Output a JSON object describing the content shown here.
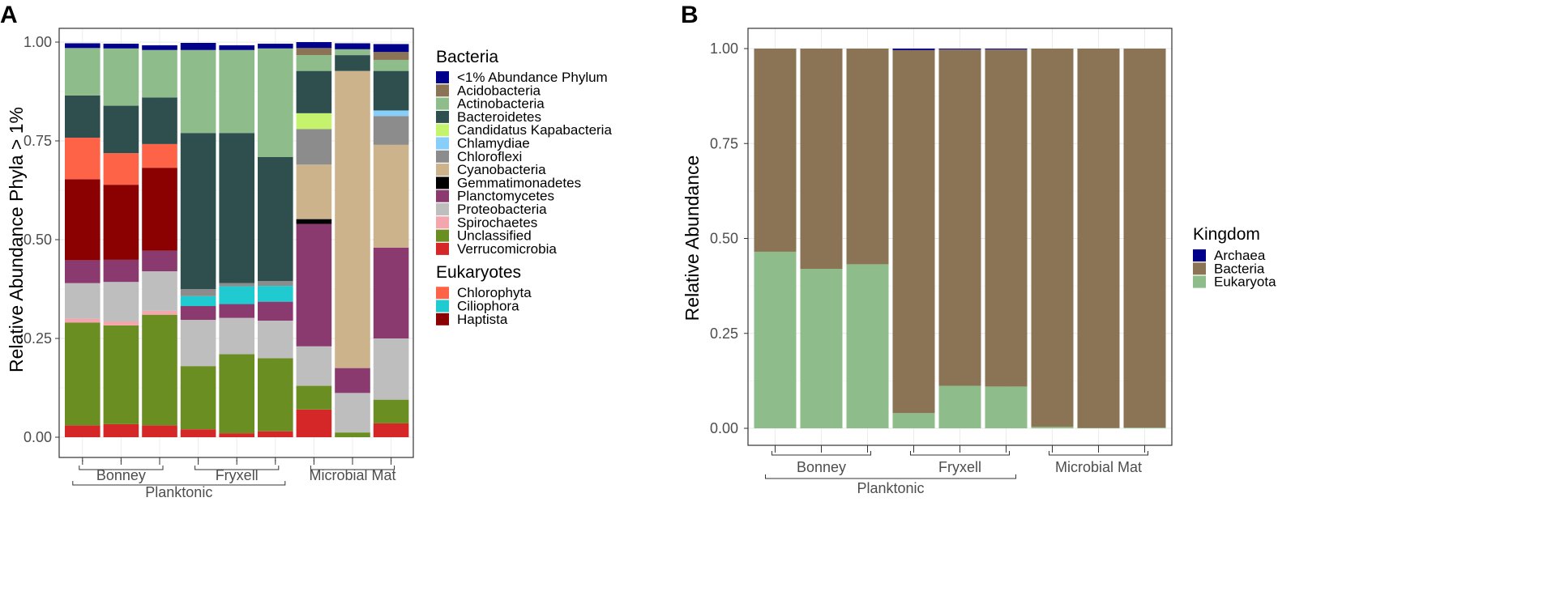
{
  "figure": {
    "panels": [
      "A",
      "B"
    ]
  },
  "chart_data": [
    {
      "panel": "A",
      "type": "bar",
      "stacked": true,
      "title": "",
      "xlabel": "",
      "ylabel": "Relative Abundance Phyla > 1%",
      "ylim": [
        0,
        1
      ],
      "yticks": [
        "0.00",
        "0.25",
        "0.50",
        "0.75",
        "1.00"
      ],
      "grid": true,
      "legend_position": "right",
      "samples": 9,
      "groups": {
        "sites": [
          {
            "label": "Bonney",
            "from": 0,
            "to": 2
          },
          {
            "label": "Fryxell",
            "from": 3,
            "to": 5
          },
          {
            "label": "Microbial Mat",
            "from": 6,
            "to": 8
          }
        ],
        "types": [
          {
            "label": "Planktonic",
            "from": 0,
            "to": 5
          }
        ]
      },
      "legend_groups": [
        {
          "title": "Bacteria",
          "members": [
            "<1% Abundance Phylum",
            "Acidobacteria",
            "Actinobacteria",
            "Bacteroidetes",
            "Candidatus Kapabacteria",
            "Chlamydiae",
            "Chloroflexi",
            "Cyanobacteria",
            "Gemmatimonadetes",
            "Planctomycetes",
            "Proteobacteria",
            "Spirochaetes",
            "Unclassified",
            "Verrucomicrobia"
          ]
        },
        {
          "title": "Eukaryotes",
          "members": [
            "Chlorophyta",
            "Ciliophora",
            "Haptista"
          ]
        }
      ],
      "series": [
        {
          "name": "Verrucomicrobia",
          "color": "#d62728",
          "values": [
            0.03,
            0.033,
            0.03,
            0.02,
            0.01,
            0.015,
            0.07,
            0.0,
            0.035
          ]
        },
        {
          "name": "Unclassified",
          "color": "#6b8e23",
          "values": [
            0.26,
            0.25,
            0.28,
            0.16,
            0.2,
            0.185,
            0.06,
            0.012,
            0.06
          ]
        },
        {
          "name": "Spirochaetes",
          "color": "#f4a6ae",
          "values": [
            0.01,
            0.01,
            0.01,
            0.0,
            0.0,
            0.0,
            0.0,
            0.0,
            0.0
          ]
        },
        {
          "name": "Proteobacteria",
          "color": "#bebebe",
          "values": [
            0.09,
            0.1,
            0.1,
            0.117,
            0.092,
            0.095,
            0.1,
            0.1,
            0.155
          ]
        },
        {
          "name": "Planctomycetes",
          "color": "#8b3a70",
          "values": [
            0.058,
            0.056,
            0.052,
            0.035,
            0.035,
            0.048,
            0.31,
            0.063,
            0.23
          ]
        },
        {
          "name": "Ciliophora",
          "color": "#1fcad0",
          "values": [
            0.0,
            0.0,
            0.0,
            0.025,
            0.045,
            0.04,
            0.0,
            0.0,
            0.0
          ]
        },
        {
          "name": "Haptista",
          "color": "#8b0000",
          "values": [
            0.205,
            0.19,
            0.21,
            0.0,
            0.0,
            0.0,
            0.0,
            0.0,
            0.0
          ]
        },
        {
          "name": "Gemmatimonadetes",
          "color": "#000000",
          "values": [
            0.0,
            0.0,
            0.0,
            0.0,
            0.0,
            0.0,
            0.012,
            0.0,
            0.0
          ]
        },
        {
          "name": "Cyanobacteria",
          "color": "#cdb38b",
          "values": [
            0.0,
            0.0,
            0.0,
            0.0,
            0.0,
            0.0,
            0.138,
            0.752,
            0.26
          ]
        },
        {
          "name": "Chloroflexi",
          "color": "#8c8c8c",
          "values": [
            0.0,
            0.0,
            0.0,
            0.018,
            0.008,
            0.012,
            0.09,
            0.0,
            0.073
          ]
        },
        {
          "name": "Chlorophyta",
          "color": "#ff6347",
          "values": [
            0.105,
            0.08,
            0.06,
            0.0,
            0.0,
            0.0,
            0.0,
            0.0,
            0.0
          ]
        },
        {
          "name": "Candidatus Kapabacteria",
          "color": "#c6f36e",
          "values": [
            0.0,
            0.0,
            0.0,
            0.0,
            0.0,
            0.0,
            0.04,
            0.0,
            0.0
          ]
        },
        {
          "name": "Chlamydiae",
          "color": "#87cefa",
          "values": [
            0.0,
            0.0,
            0.0,
            0.0,
            0.0,
            0.0,
            0.0,
            0.0,
            0.014
          ]
        },
        {
          "name": "Bacteroidetes",
          "color": "#2f4f4f",
          "values": [
            0.107,
            0.12,
            0.118,
            0.395,
            0.38,
            0.314,
            0.107,
            0.04,
            0.1
          ]
        },
        {
          "name": "Actinobacteria",
          "color": "#8fbc8b",
          "values": [
            0.12,
            0.145,
            0.12,
            0.21,
            0.21,
            0.275,
            0.04,
            0.015,
            0.028
          ]
        },
        {
          "name": "Acidobacteria",
          "color": "#8b7355",
          "values": [
            0.0,
            0.0,
            0.0,
            0.0,
            0.0,
            0.0,
            0.018,
            0.0,
            0.02
          ]
        },
        {
          "name": "<1% Abundance Phylum",
          "color": "#00008b",
          "values": [
            0.012,
            0.012,
            0.012,
            0.018,
            0.012,
            0.012,
            0.015,
            0.015,
            0.02
          ]
        }
      ]
    },
    {
      "panel": "B",
      "type": "bar",
      "stacked": true,
      "title": "",
      "xlabel": "",
      "ylabel": "Relative Abundance",
      "ylim": [
        0,
        1
      ],
      "yticks": [
        "0.00",
        "0.25",
        "0.50",
        "0.75",
        "1.00"
      ],
      "grid": true,
      "legend_position": "right",
      "legend_title": "Kingdom",
      "samples": 9,
      "groups": {
        "sites": [
          {
            "label": "Bonney",
            "from": 0,
            "to": 2
          },
          {
            "label": "Fryxell",
            "from": 3,
            "to": 5
          },
          {
            "label": "Microbial Mat",
            "from": 6,
            "to": 8
          }
        ],
        "types": [
          {
            "label": "Planktonic",
            "from": 0,
            "to": 5
          }
        ]
      },
      "legend_order": [
        "Archaea",
        "Bacteria",
        "Eukaryota"
      ],
      "series": [
        {
          "name": "Eukaryota",
          "color": "#8fbc8b",
          "values": [
            0.465,
            0.42,
            0.432,
            0.04,
            0.112,
            0.11,
            0.004,
            0.001,
            0.002
          ]
        },
        {
          "name": "Bacteria",
          "color": "#8b7355",
          "values": [
            0.535,
            0.58,
            0.568,
            0.956,
            0.886,
            0.888,
            0.996,
            0.999,
            0.998
          ]
        },
        {
          "name": "Archaea",
          "color": "#00008b",
          "values": [
            0.0,
            0.0,
            0.0,
            0.004,
            0.002,
            0.002,
            0.0,
            0.0,
            0.0
          ]
        }
      ]
    }
  ]
}
